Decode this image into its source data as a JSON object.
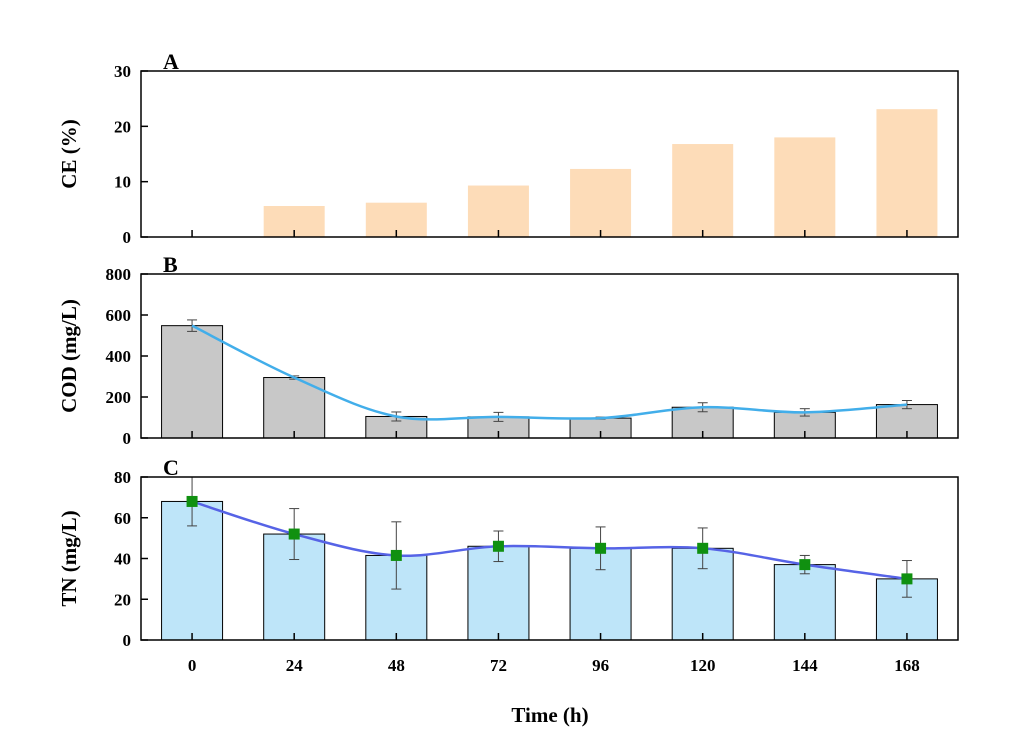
{
  "chart_data": [
    {
      "type": "bar",
      "panel": "A",
      "ylabel": "CE (%)",
      "ylim": [
        0,
        30
      ],
      "yticks": [
        0,
        10,
        20,
        30
      ],
      "categories": [
        "0",
        "24",
        "48",
        "72",
        "96",
        "120",
        "144",
        "168"
      ],
      "values": [
        0,
        5.6,
        6.2,
        9.3,
        12.3,
        16.8,
        18.0,
        23.1
      ],
      "bar_color": "#FDDCB8",
      "line": null
    },
    {
      "type": "bar",
      "panel": "B",
      "ylabel": "COD (mg/L)",
      "ylim": [
        0,
        800
      ],
      "yticks": [
        0,
        200,
        400,
        600,
        800
      ],
      "categories": [
        "0",
        "24",
        "48",
        "72",
        "96",
        "120",
        "144",
        "168"
      ],
      "values": [
        548,
        295,
        105,
        103,
        97,
        150,
        125,
        163
      ],
      "errors": [
        28,
        8,
        22,
        22,
        5,
        22,
        18,
        20
      ],
      "bar_color": "#C8C8C8",
      "line": {
        "color": "#42AEEA",
        "markers": false
      }
    },
    {
      "type": "bar",
      "panel": "C",
      "ylabel": "TN (mg/L)",
      "ylim": [
        0,
        80
      ],
      "yticks": [
        0,
        20,
        40,
        60,
        80
      ],
      "categories": [
        "0",
        "24",
        "48",
        "72",
        "96",
        "120",
        "144",
        "168"
      ],
      "values": [
        68,
        52,
        41.5,
        46,
        45,
        45,
        37,
        30
      ],
      "errors": [
        12,
        12.5,
        16.5,
        7.5,
        10.5,
        10,
        4.5,
        9
      ],
      "bar_color": "#BEE5F9",
      "line": {
        "color": "#5663E6",
        "markers": true,
        "marker_color": "#109010"
      }
    }
  ],
  "xlabel": "Time (h)"
}
